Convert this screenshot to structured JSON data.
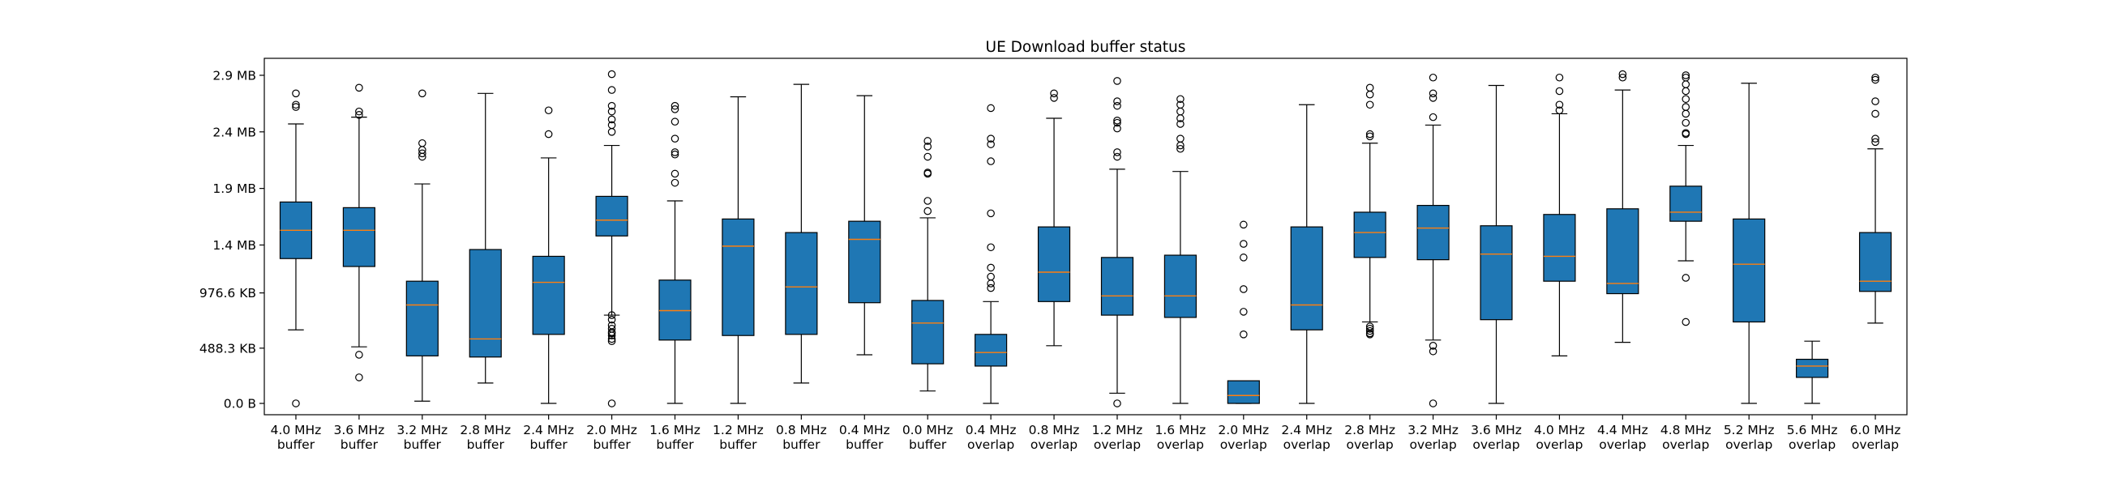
{
  "chart_data": {
    "type": "box",
    "title": "UE Download buffer status",
    "xlabel": "",
    "ylabel": "",
    "ylim": [
      -0.1,
      3.05
    ],
    "grid": false,
    "y_tick_values": [
      0.0,
      0.4883,
      0.9766,
      1.4,
      1.9,
      2.4,
      2.9
    ],
    "y_tick_labels": [
      "0.0 B",
      "488.3 KB",
      "976.6 KB",
      "1.4 MB",
      "1.9 MB",
      "2.4 MB",
      "2.9 MB"
    ],
    "colors": {
      "box_fill": "#1f77b4",
      "box_edge": "#000000",
      "median": "#ff7f0e"
    },
    "boxes": [
      {
        "label": [
          "4.0 MHz",
          "buffer"
        ],
        "whisker_low": 0.65,
        "q1": 1.28,
        "median": 1.53,
        "q3": 1.78,
        "whisker_high": 2.47,
        "outliers": [
          0.0,
          2.62,
          2.64,
          2.74
        ]
      },
      {
        "label": [
          "3.6 MHz",
          "buffer"
        ],
        "whisker_low": 0.5,
        "q1": 1.21,
        "median": 1.53,
        "q3": 1.73,
        "whisker_high": 2.53,
        "outliers": [
          0.23,
          0.43,
          2.55,
          2.58,
          2.79
        ]
      },
      {
        "label": [
          "3.2 MHz",
          "buffer"
        ],
        "whisker_low": 0.02,
        "q1": 0.42,
        "median": 0.87,
        "q3": 1.08,
        "whisker_high": 1.94,
        "outliers": [
          2.18,
          2.21,
          2.24,
          2.3,
          2.74
        ]
      },
      {
        "label": [
          "2.8 MHz",
          "buffer"
        ],
        "whisker_low": 0.18,
        "q1": 0.41,
        "median": 0.57,
        "q3": 1.36,
        "whisker_high": 2.74,
        "outliers": []
      },
      {
        "label": [
          "2.4 MHz",
          "buffer"
        ],
        "whisker_low": 0.0,
        "q1": 0.61,
        "median": 1.07,
        "q3": 1.3,
        "whisker_high": 2.17,
        "outliers": [
          2.38,
          2.59
        ]
      },
      {
        "label": [
          "2.0 MHz",
          "buffer"
        ],
        "whisker_low": 0.78,
        "q1": 1.48,
        "median": 1.62,
        "q3": 1.83,
        "whisker_high": 2.28,
        "outliers": [
          0.0,
          0.55,
          0.57,
          0.6,
          0.62,
          0.63,
          0.66,
          0.69,
          0.74,
          0.78,
          2.4,
          2.46,
          2.51,
          2.58,
          2.63,
          2.77,
          2.91
        ]
      },
      {
        "label": [
          "1.6 MHz",
          "buffer"
        ],
        "whisker_low": 0.0,
        "q1": 0.56,
        "median": 0.82,
        "q3": 1.09,
        "whisker_high": 1.79,
        "outliers": [
          1.95,
          2.03,
          2.2,
          2.22,
          2.34,
          2.49,
          2.6,
          2.63
        ]
      },
      {
        "label": [
          "1.2 MHz",
          "buffer"
        ],
        "whisker_low": 0.0,
        "q1": 0.6,
        "median": 1.39,
        "q3": 1.63,
        "whisker_high": 2.71,
        "outliers": []
      },
      {
        "label": [
          "0.8 MHz",
          "buffer"
        ],
        "whisker_low": 0.18,
        "q1": 0.61,
        "median": 1.03,
        "q3": 1.51,
        "whisker_high": 2.82,
        "outliers": []
      },
      {
        "label": [
          "0.4 MHz",
          "buffer"
        ],
        "whisker_low": 0.43,
        "q1": 0.89,
        "median": 1.45,
        "q3": 1.61,
        "whisker_high": 2.72,
        "outliers": []
      },
      {
        "label": [
          "0.0 MHz",
          "buffer"
        ],
        "whisker_low": 0.11,
        "q1": 0.35,
        "median": 0.71,
        "q3": 0.91,
        "whisker_high": 1.64,
        "outliers": [
          1.7,
          1.79,
          2.03,
          2.04,
          2.18,
          2.27,
          2.32
        ]
      },
      {
        "label": [
          "0.4 MHz",
          "overlap"
        ],
        "whisker_low": 0.0,
        "q1": 0.33,
        "median": 0.45,
        "q3": 0.61,
        "whisker_high": 0.9,
        "outliers": [
          1.02,
          1.06,
          1.12,
          1.2,
          1.38,
          1.68,
          2.14,
          2.29,
          2.34,
          2.61
        ]
      },
      {
        "label": [
          "0.8 MHz",
          "overlap"
        ],
        "whisker_low": 0.51,
        "q1": 0.9,
        "median": 1.16,
        "q3": 1.56,
        "whisker_high": 2.52,
        "outliers": [
          2.7,
          2.74
        ]
      },
      {
        "label": [
          "1.2 MHz",
          "overlap"
        ],
        "whisker_low": 0.09,
        "q1": 0.78,
        "median": 0.95,
        "q3": 1.29,
        "whisker_high": 2.07,
        "outliers": [
          0.0,
          2.18,
          2.22,
          2.43,
          2.48,
          2.5,
          2.63,
          2.67,
          2.85
        ]
      },
      {
        "label": [
          "1.6 MHz",
          "overlap"
        ],
        "whisker_low": 0.0,
        "q1": 0.76,
        "median": 0.95,
        "q3": 1.31,
        "whisker_high": 2.05,
        "outliers": [
          2.25,
          2.28,
          2.34,
          2.47,
          2.52,
          2.58,
          2.64,
          2.69
        ]
      },
      {
        "label": [
          "2.0 MHz",
          "overlap"
        ],
        "whisker_low": 0.0,
        "q1": 0.0,
        "median": 0.07,
        "q3": 0.2,
        "whisker_high": 0.2,
        "outliers": [
          0.61,
          0.81,
          1.01,
          1.29,
          1.41,
          1.58
        ]
      },
      {
        "label": [
          "2.4 MHz",
          "overlap"
        ],
        "whisker_low": 0.0,
        "q1": 0.65,
        "median": 0.87,
        "q3": 1.56,
        "whisker_high": 2.64,
        "outliers": []
      },
      {
        "label": [
          "2.8 MHz",
          "overlap"
        ],
        "whisker_low": 0.72,
        "q1": 1.29,
        "median": 1.51,
        "q3": 1.69,
        "whisker_high": 2.3,
        "outliers": [
          0.61,
          0.62,
          0.64,
          0.66,
          0.68,
          2.36,
          2.38,
          2.64,
          2.73,
          2.79
        ]
      },
      {
        "label": [
          "3.2 MHz",
          "overlap"
        ],
        "whisker_low": 0.56,
        "q1": 1.27,
        "median": 1.55,
        "q3": 1.75,
        "whisker_high": 2.46,
        "outliers": [
          0.0,
          0.46,
          0.51,
          2.53,
          2.7,
          2.74,
          2.88
        ]
      },
      {
        "label": [
          "3.6 MHz",
          "overlap"
        ],
        "whisker_low": 0.0,
        "q1": 0.74,
        "median": 1.32,
        "q3": 1.57,
        "whisker_high": 2.81,
        "outliers": []
      },
      {
        "label": [
          "4.0 MHz",
          "overlap"
        ],
        "whisker_low": 0.42,
        "q1": 1.08,
        "median": 1.3,
        "q3": 1.67,
        "whisker_high": 2.56,
        "outliers": [
          2.59,
          2.64,
          2.76,
          2.88
        ]
      },
      {
        "label": [
          "4.4 MHz",
          "overlap"
        ],
        "whisker_low": 0.54,
        "q1": 0.97,
        "median": 1.06,
        "q3": 1.72,
        "whisker_high": 2.77,
        "outliers": [
          2.88,
          2.91
        ]
      },
      {
        "label": [
          "4.8 MHz",
          "overlap"
        ],
        "whisker_low": 1.26,
        "q1": 1.61,
        "median": 1.69,
        "q3": 1.92,
        "whisker_high": 2.28,
        "outliers": [
          0.72,
          1.11,
          2.38,
          2.39,
          2.48,
          2.56,
          2.62,
          2.69,
          2.76,
          2.82,
          2.88,
          2.9
        ]
      },
      {
        "label": [
          "5.2 MHz",
          "overlap"
        ],
        "whisker_low": 0.0,
        "q1": 0.72,
        "median": 1.23,
        "q3": 1.63,
        "whisker_high": 2.83,
        "outliers": []
      },
      {
        "label": [
          "5.6 MHz",
          "overlap"
        ],
        "whisker_low": 0.0,
        "q1": 0.23,
        "median": 0.33,
        "q3": 0.39,
        "whisker_high": 0.55,
        "outliers": []
      },
      {
        "label": [
          "6.0 MHz",
          "overlap"
        ],
        "whisker_low": 0.71,
        "q1": 0.99,
        "median": 1.08,
        "q3": 1.51,
        "whisker_high": 2.25,
        "outliers": [
          2.31,
          2.34,
          2.56,
          2.67,
          2.86,
          2.88
        ]
      }
    ]
  }
}
